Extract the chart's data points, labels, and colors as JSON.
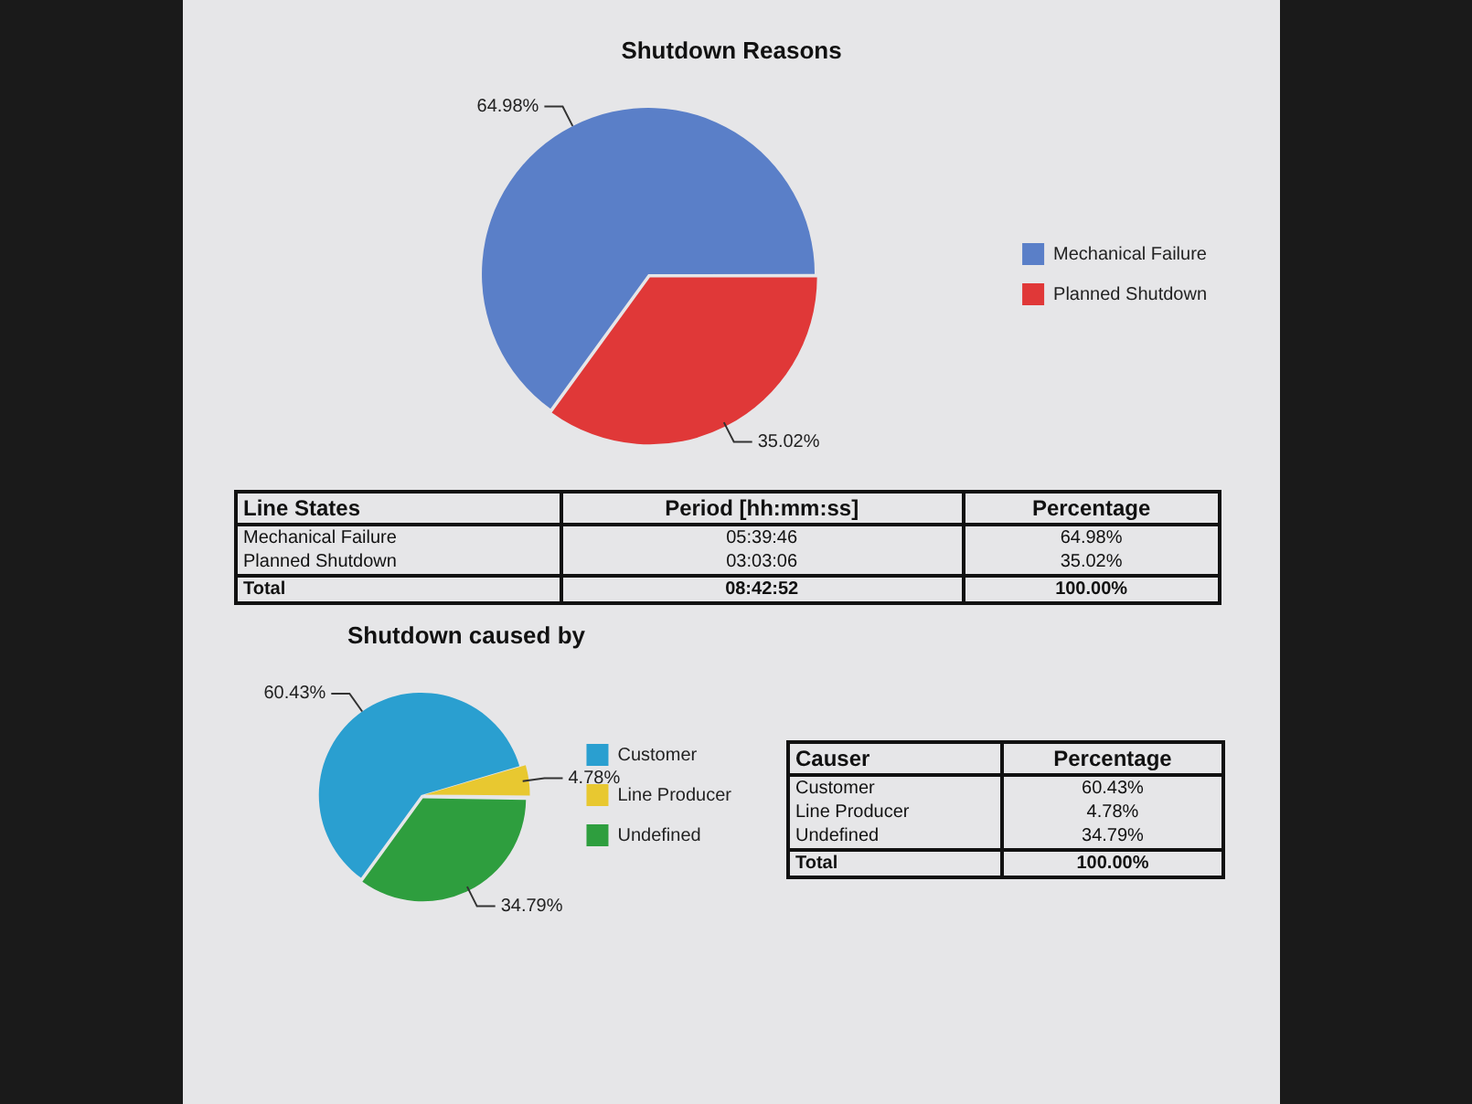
{
  "chart_data": [
    {
      "type": "pie",
      "title": "Shutdown Reasons",
      "categories": [
        "Mechanical Failure",
        "Planned Shutdown"
      ],
      "values": [
        64.98,
        35.02
      ],
      "value_labels": [
        "64.98%",
        "35.02%"
      ],
      "colors": [
        "#5a7fc8",
        "#e03838"
      ],
      "legend": "right",
      "annotations": [
        "Line States",
        "Period [hh:mm:ss]",
        "Percentage",
        "05:39:46",
        "03:03:06",
        "Total",
        "08:42:52",
        "100.00%"
      ]
    },
    {
      "type": "pie",
      "title": "Shutdown caused by",
      "categories": [
        "Customer",
        "Line Producer",
        "Undefined"
      ],
      "values": [
        60.43,
        4.78,
        34.79
      ],
      "value_labels": [
        "60.43%",
        "4.78%",
        "34.79%"
      ],
      "colors": [
        "#2a9fd0",
        "#e8c830",
        "#2e9e3e"
      ],
      "legend": "right",
      "annotations": [
        "Causer",
        "Percentage",
        "Total",
        "100.00%"
      ]
    }
  ]
}
